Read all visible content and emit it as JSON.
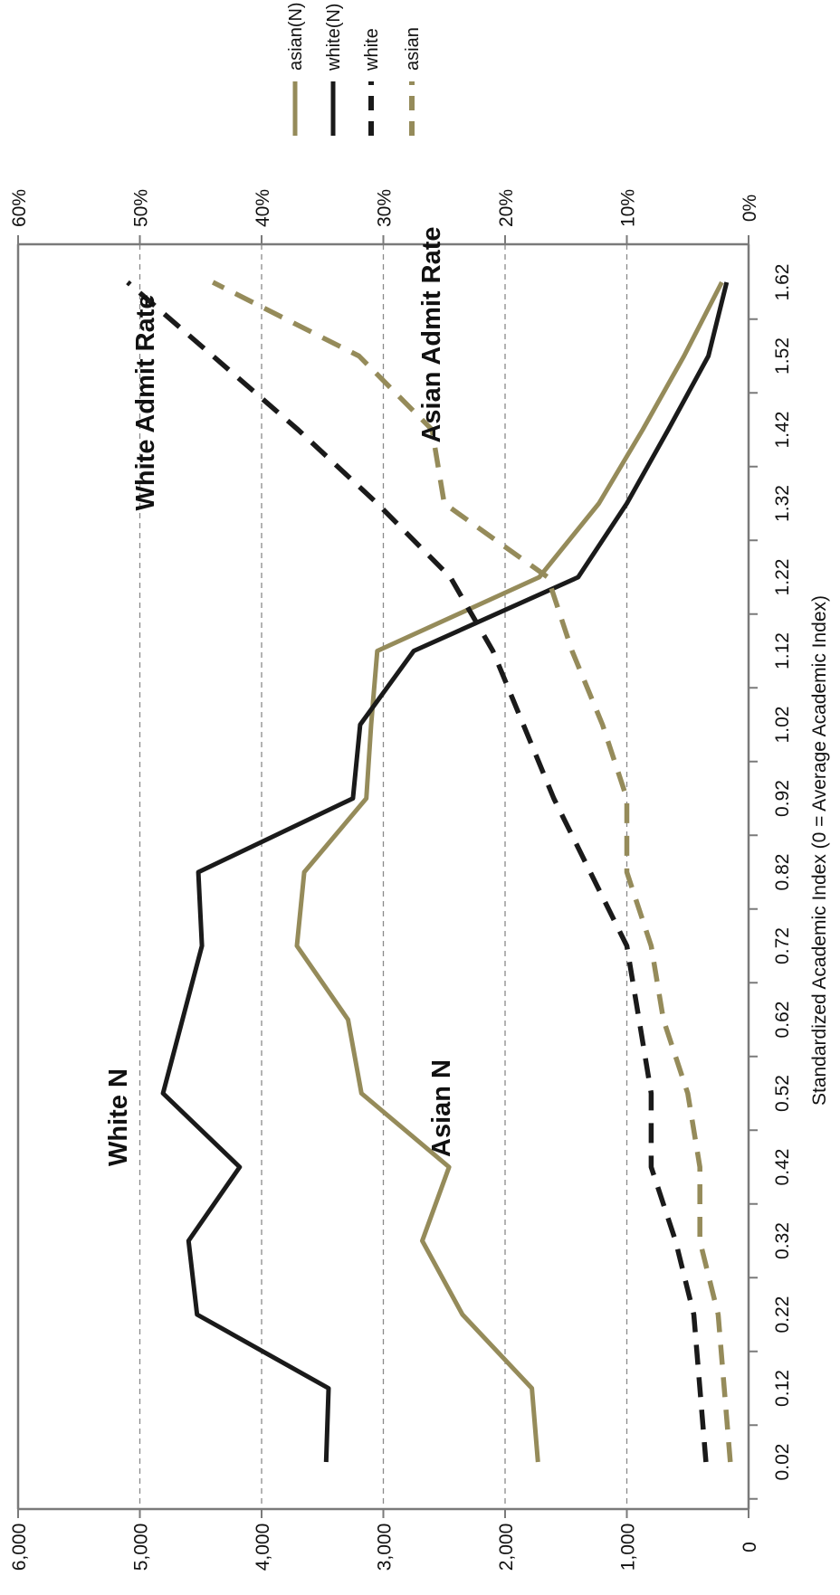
{
  "chart_data": {
    "type": "line",
    "orientation": "rotated-90-clockwise",
    "x": [
      0.02,
      0.12,
      0.22,
      0.32,
      0.42,
      0.52,
      0.62,
      0.72,
      0.82,
      0.92,
      1.02,
      1.12,
      1.22,
      1.32,
      1.42,
      1.52,
      1.62
    ],
    "x_tick_labels": [
      "0.02",
      "0.12",
      "0.22",
      "0.32",
      "0.42",
      "0.52",
      "0.62",
      "0.72",
      "0.82",
      "0.92",
      "1.02",
      "1.12",
      "1.22",
      "1.32",
      "1.42",
      "1.52",
      "1.62"
    ],
    "xlabel": "Standardized Academic Index (0 = Average Academic Index)",
    "y_left": {
      "range": [
        0,
        6000
      ],
      "tick_labels": [
        "0",
        "1,000",
        "2,000",
        "3,000",
        "4,000",
        "5,000",
        "6,000"
      ]
    },
    "y_right": {
      "range": [
        0,
        0.6
      ],
      "tick_labels": [
        "0%",
        "10%",
        "20%",
        "30%",
        "40%",
        "50%",
        "60%"
      ]
    },
    "grid": true,
    "legend_placement": "top-right",
    "series": [
      {
        "name": "asian(N)",
        "axis": "left",
        "style": "solid",
        "color": "#958b5a",
        "values": [
          1730,
          1780,
          2350,
          2680,
          2460,
          3180,
          3290,
          3710,
          3650,
          3140,
          3100,
          3050,
          1720,
          1230,
          870,
          530,
          220
        ]
      },
      {
        "name": "white(N)",
        "axis": "left",
        "style": "solid",
        "color": "#1a1a1a",
        "values": [
          3470,
          3450,
          4530,
          4600,
          4180,
          4810,
          4650,
          4490,
          4520,
          3250,
          3190,
          2750,
          1400,
          1000,
          660,
          330,
          180
        ]
      },
      {
        "name": "white",
        "axis": "right",
        "style": "dashed",
        "color": "#1a1a1a",
        "values": [
          0.035,
          0.04,
          0.045,
          0.06,
          0.08,
          0.08,
          0.09,
          0.1,
          0.13,
          0.16,
          0.185,
          0.21,
          0.245,
          0.305,
          0.37,
          0.44,
          0.51
        ]
      },
      {
        "name": "asian",
        "axis": "right",
        "style": "dashed",
        "color": "#958b5a",
        "values": [
          0.015,
          0.02,
          0.025,
          0.04,
          0.04,
          0.05,
          0.07,
          0.08,
          0.1,
          0.1,
          0.12,
          0.145,
          0.165,
          0.25,
          0.26,
          0.32,
          0.44
        ]
      }
    ],
    "annotations": [
      {
        "text": "White Admit Rate",
        "series": "white"
      },
      {
        "text": "Asian Admit Rate",
        "series": "asian"
      },
      {
        "text": "White N",
        "series": "white(N)"
      },
      {
        "text": "Asian N",
        "series": "asian(N)"
      }
    ]
  }
}
